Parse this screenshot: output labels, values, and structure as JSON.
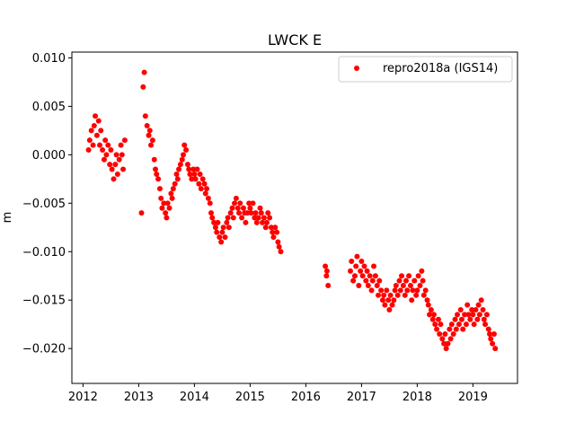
{
  "chart_data": {
    "type": "scatter",
    "title": "LWCK E",
    "xlabel": "",
    "ylabel": "m",
    "xlim": [
      2011.8,
      2019.8
    ],
    "ylim": [
      -0.0236,
      0.0106
    ],
    "xticks": [
      2012,
      2013,
      2014,
      2015,
      2016,
      2017,
      2018,
      2019
    ],
    "xtick_labels": [
      "2012",
      "2013",
      "2014",
      "2015",
      "2016",
      "2017",
      "2018",
      "2019"
    ],
    "yticks": [
      0.01,
      0.005,
      0.0,
      -0.005,
      -0.01,
      -0.015,
      -0.02
    ],
    "ytick_labels": [
      "0.010",
      "0.005",
      "0.000",
      "−0.005",
      "−0.010",
      "−0.015",
      "−0.020"
    ],
    "grid": false,
    "legend_position": "top-right",
    "series": [
      {
        "name": "repro2018a (IGS14)",
        "color": "#ff0000",
        "marker": "circle",
        "x": [
          2012.1,
          2012.12,
          2012.15,
          2012.18,
          2012.2,
          2012.22,
          2012.25,
          2012.28,
          2012.3,
          2012.32,
          2012.35,
          2012.38,
          2012.4,
          2012.42,
          2012.45,
          2012.48,
          2012.5,
          2012.52,
          2012.55,
          2012.58,
          2012.6,
          2012.62,
          2012.65,
          2012.68,
          2012.7,
          2012.72,
          2012.75,
          2013.05,
          2013.08,
          2013.1,
          2013.12,
          2013.15,
          2013.18,
          2013.2,
          2013.22,
          2013.25,
          2013.28,
          2013.3,
          2013.32,
          2013.35,
          2013.38,
          2013.4,
          2013.42,
          2013.45,
          2013.48,
          2013.5,
          2013.52,
          2013.55,
          2013.58,
          2013.6,
          2013.62,
          2013.65,
          2013.68,
          2013.7,
          2013.72,
          2013.75,
          2013.78,
          2013.8,
          2013.82,
          2013.85,
          2013.88,
          2013.9,
          2013.92,
          2013.95,
          2013.98,
          2014.0,
          2014.02,
          2014.05,
          2014.08,
          2014.1,
          2014.12,
          2014.15,
          2014.18,
          2014.2,
          2014.22,
          2014.25,
          2014.28,
          2014.3,
          2014.32,
          2014.35,
          2014.38,
          2014.4,
          2014.42,
          2014.45,
          2014.48,
          2014.5,
          2014.52,
          2014.55,
          2014.58,
          2014.6,
          2014.62,
          2014.65,
          2014.68,
          2014.7,
          2014.72,
          2014.75,
          2014.78,
          2014.8,
          2014.82,
          2014.85,
          2014.88,
          2014.9,
          2014.92,
          2014.95,
          2014.98,
          2015.0,
          2015.02,
          2015.05,
          2015.08,
          2015.1,
          2015.12,
          2015.15,
          2015.18,
          2015.2,
          2015.22,
          2015.25,
          2015.28,
          2015.3,
          2015.32,
          2015.35,
          2015.38,
          2015.4,
          2015.42,
          2015.45,
          2015.48,
          2015.5,
          2015.52,
          2015.55,
          2016.35,
          2016.37,
          2016.38,
          2016.4,
          2016.8,
          2016.82,
          2016.85,
          2016.88,
          2016.9,
          2016.92,
          2016.95,
          2016.98,
          2017.0,
          2017.02,
          2017.05,
          2017.08,
          2017.1,
          2017.12,
          2017.15,
          2017.18,
          2017.2,
          2017.22,
          2017.25,
          2017.28,
          2017.3,
          2017.32,
          2017.35,
          2017.38,
          2017.4,
          2017.42,
          2017.45,
          2017.48,
          2017.5,
          2017.52,
          2017.55,
          2017.58,
          2017.6,
          2017.62,
          2017.65,
          2017.68,
          2017.7,
          2017.72,
          2017.75,
          2017.78,
          2017.8,
          2017.82,
          2017.85,
          2017.88,
          2017.9,
          2017.92,
          2017.95,
          2017.98,
          2018.0,
          2018.02,
          2018.05,
          2018.08,
          2018.1,
          2018.12,
          2018.15,
          2018.18,
          2018.2,
          2018.22,
          2018.25,
          2018.28,
          2018.3,
          2018.32,
          2018.35,
          2018.38,
          2018.4,
          2018.42,
          2018.45,
          2018.48,
          2018.5,
          2018.52,
          2018.55,
          2018.58,
          2018.6,
          2018.62,
          2018.65,
          2018.68,
          2018.7,
          2018.72,
          2018.75,
          2018.78,
          2018.8,
          2018.82,
          2018.85,
          2018.88,
          2018.9,
          2018.92,
          2018.95,
          2018.98,
          2019.0,
          2019.02,
          2019.05,
          2019.08,
          2019.1,
          2019.12,
          2019.15,
          2019.18,
          2019.2,
          2019.22,
          2019.25,
          2019.28,
          2019.3,
          2019.32,
          2019.35,
          2019.38,
          2019.4
        ],
        "y": [
          0.0005,
          0.0015,
          0.0025,
          0.001,
          0.003,
          0.004,
          0.002,
          0.0035,
          0.001,
          0.0025,
          0.0005,
          -0.0005,
          0.0015,
          0.0,
          0.001,
          -0.001,
          0.0005,
          -0.0015,
          -0.0025,
          -0.001,
          0.0,
          -0.002,
          -0.0005,
          0.001,
          0.0,
          -0.0015,
          0.0015,
          -0.006,
          0.007,
          0.0085,
          0.004,
          0.003,
          0.002,
          0.0025,
          0.001,
          0.0015,
          -0.0005,
          -0.0015,
          -0.002,
          -0.0025,
          -0.0035,
          -0.0045,
          -0.0055,
          -0.005,
          -0.006,
          -0.0065,
          -0.005,
          -0.0055,
          -0.004,
          -0.0045,
          -0.0035,
          -0.003,
          -0.002,
          -0.0025,
          -0.0015,
          -0.001,
          -0.0005,
          0.0,
          0.001,
          0.0005,
          -0.001,
          -0.0015,
          -0.002,
          -0.0025,
          -0.0015,
          -0.002,
          -0.0025,
          -0.0015,
          -0.003,
          -0.002,
          -0.0035,
          -0.0025,
          -0.003,
          -0.004,
          -0.0035,
          -0.0045,
          -0.005,
          -0.006,
          -0.0065,
          -0.007,
          -0.0075,
          -0.008,
          -0.007,
          -0.0085,
          -0.009,
          -0.008,
          -0.0075,
          -0.0085,
          -0.007,
          -0.0065,
          -0.0075,
          -0.006,
          -0.0055,
          -0.0065,
          -0.005,
          -0.0045,
          -0.0055,
          -0.006,
          -0.005,
          -0.0065,
          -0.0055,
          -0.006,
          -0.007,
          -0.006,
          -0.005,
          -0.0055,
          -0.006,
          -0.005,
          -0.0065,
          -0.006,
          -0.007,
          -0.0065,
          -0.0055,
          -0.006,
          -0.007,
          -0.0065,
          -0.0075,
          -0.007,
          -0.006,
          -0.0065,
          -0.0075,
          -0.008,
          -0.0085,
          -0.0075,
          -0.008,
          -0.009,
          -0.0095,
          -0.01,
          -0.0115,
          -0.0125,
          -0.012,
          -0.0135,
          -0.012,
          -0.011,
          -0.013,
          -0.0125,
          -0.0115,
          -0.0105,
          -0.0135,
          -0.012,
          -0.011,
          -0.0125,
          -0.0115,
          -0.013,
          -0.012,
          -0.0135,
          -0.0125,
          -0.014,
          -0.013,
          -0.0115,
          -0.0125,
          -0.0135,
          -0.0145,
          -0.013,
          -0.014,
          -0.015,
          -0.0145,
          -0.0155,
          -0.014,
          -0.015,
          -0.016,
          -0.0145,
          -0.0155,
          -0.015,
          -0.014,
          -0.0135,
          -0.0145,
          -0.013,
          -0.014,
          -0.0125,
          -0.0135,
          -0.0145,
          -0.013,
          -0.014,
          -0.0125,
          -0.0135,
          -0.015,
          -0.014,
          -0.013,
          -0.0145,
          -0.014,
          -0.0125,
          -0.0135,
          -0.012,
          -0.013,
          -0.0145,
          -0.014,
          -0.015,
          -0.0155,
          -0.0165,
          -0.016,
          -0.017,
          -0.0165,
          -0.0175,
          -0.018,
          -0.017,
          -0.0185,
          -0.0175,
          -0.019,
          -0.0195,
          -0.0185,
          -0.02,
          -0.0195,
          -0.018,
          -0.019,
          -0.0175,
          -0.0185,
          -0.017,
          -0.018,
          -0.0165,
          -0.0175,
          -0.016,
          -0.017,
          -0.018,
          -0.0165,
          -0.0175,
          -0.0155,
          -0.0165,
          -0.017,
          -0.016,
          -0.0165,
          -0.0175,
          -0.016,
          -0.017,
          -0.0155,
          -0.0165,
          -0.015,
          -0.016,
          -0.017,
          -0.0175,
          -0.0165,
          -0.018,
          -0.0185,
          -0.019,
          -0.0195,
          -0.0185,
          -0.02
        ]
      }
    ]
  }
}
